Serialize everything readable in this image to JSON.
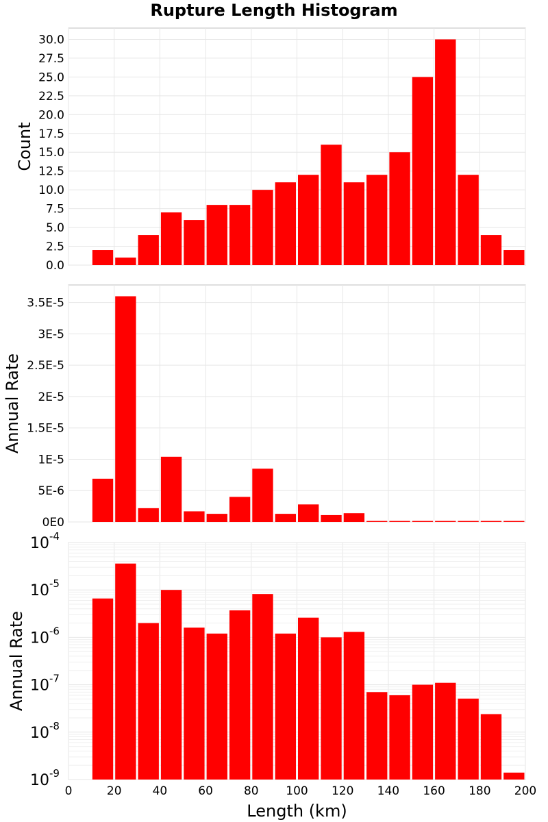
{
  "title": "Rupture Length Histogram",
  "colors": {
    "bar": "#ff0000",
    "grid": "#e6e6e6",
    "frame": "#bfbfbf"
  },
  "chart_data": [
    {
      "type": "bar",
      "id": "count",
      "ylabel": "Count",
      "xlabel": "",
      "xlim": [
        0,
        200
      ],
      "ylim": [
        0,
        31.5
      ],
      "grid": true,
      "bin_width": 10,
      "x": [
        15,
        25,
        35,
        45,
        55,
        65,
        75,
        85,
        95,
        105,
        115,
        125,
        135,
        145,
        155,
        165,
        175,
        185,
        195
      ],
      "values": [
        2,
        1,
        4,
        7,
        6,
        8,
        8,
        10,
        11,
        12,
        16,
        11,
        12,
        15,
        25,
        30,
        12,
        4,
        2
      ],
      "yticks": [
        0,
        2.5,
        5,
        7.5,
        10,
        12.5,
        15,
        17.5,
        20,
        22.5,
        25,
        27.5,
        30
      ],
      "ytick_labels": [
        "0.0",
        "2.5",
        "5.0",
        "7.5",
        "10.0",
        "12.5",
        "15.0",
        "17.5",
        "20.0",
        "22.5",
        "25.0",
        "27.5",
        "30.0"
      ]
    },
    {
      "type": "bar",
      "id": "rate-linear",
      "ylabel": "Annual Rate",
      "xlabel": "",
      "xlim": [
        0,
        200
      ],
      "ylim": [
        0,
        3.78e-05
      ],
      "grid": true,
      "bin_width": 10,
      "x": [
        15,
        25,
        35,
        45,
        55,
        65,
        75,
        85,
        95,
        105,
        115,
        125,
        135,
        145,
        155,
        165,
        175,
        185,
        195
      ],
      "values": [
        6.9e-06,
        3.6e-05,
        2.2e-06,
        1.04e-05,
        1.7e-06,
        1.3e-06,
        4e-06,
        8.5e-06,
        1.3e-06,
        2.8e-06,
        1.1e-06,
        1.4e-06,
        8e-08,
        7e-08,
        1e-07,
        1.1e-07,
        5e-08,
        3e-08,
        1.5e-09
      ],
      "yticks": [
        0,
        5e-06,
        1e-05,
        1.5e-05,
        2e-05,
        2.5e-05,
        3e-05,
        3.5e-05
      ],
      "ytick_labels": [
        "0E0",
        "5E-6",
        "1E-5",
        "1.5E-5",
        "2E-5",
        "2.5E-5",
        "3E-5",
        "3.5E-5"
      ]
    },
    {
      "type": "bar",
      "id": "rate-log",
      "ylabel": "Annual Rate",
      "xlabel": "Length (km)",
      "xlim": [
        0,
        200
      ],
      "ylim": [
        1e-09,
        0.0001
      ],
      "yscale": "log",
      "grid": true,
      "bin_width": 10,
      "x": [
        15,
        25,
        35,
        45,
        55,
        65,
        75,
        85,
        95,
        105,
        115,
        125,
        135,
        145,
        155,
        165,
        175,
        185,
        195
      ],
      "values": [
        6.6e-06,
        3.6e-05,
        2e-06,
        1e-05,
        1.6e-06,
        1.2e-06,
        3.7e-06,
        8.2e-06,
        1.2e-06,
        2.6e-06,
        1e-06,
        1.3e-06,
        7e-08,
        6e-08,
        1e-07,
        1.1e-07,
        5.1e-08,
        2.4e-08,
        1.4e-09
      ],
      "yticks": [
        1e-09,
        1e-08,
        1e-07,
        1e-06,
        1e-05,
        0.0001
      ],
      "ytick_base": "10",
      "ytick_exponents": [
        "-9",
        "-8",
        "-7",
        "-6",
        "-5",
        "-4"
      ],
      "xticks": [
        0,
        20,
        40,
        60,
        80,
        100,
        120,
        140,
        160,
        180,
        200
      ],
      "xtick_labels": [
        "0",
        "20",
        "40",
        "60",
        "80",
        "100",
        "120",
        "140",
        "160",
        "180",
        "200"
      ]
    }
  ]
}
